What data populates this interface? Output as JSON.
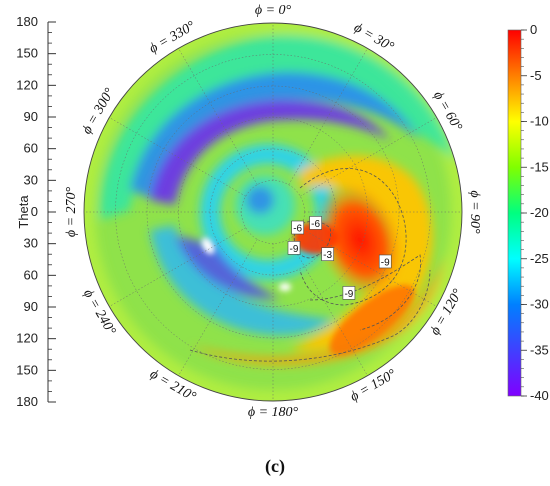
{
  "chart_data": {
    "type": "heatmap",
    "projection": "polar",
    "ylabel": "Theta",
    "theta_ticks": [
      "180",
      "150",
      "120",
      "90",
      "60",
      "30",
      "0",
      "30",
      "60",
      "90",
      "120",
      "150",
      "180"
    ],
    "theta_range": [
      0,
      180
    ],
    "phi_labels": [
      {
        "phi": 0,
        "text": "ϕ = 0°"
      },
      {
        "phi": 30,
        "text": "ϕ = 30°"
      },
      {
        "phi": 60,
        "text": "ϕ = 60°"
      },
      {
        "phi": 90,
        "text": "ϕ = 90°"
      },
      {
        "phi": 120,
        "text": "ϕ = 120°"
      },
      {
        "phi": 150,
        "text": "ϕ = 150°"
      },
      {
        "phi": 180,
        "text": "ϕ = 180°"
      },
      {
        "phi": 210,
        "text": "ϕ = 210°"
      },
      {
        "phi": 240,
        "text": "ϕ = 240°"
      },
      {
        "phi": 270,
        "text": "ϕ = 270°"
      },
      {
        "phi": 300,
        "text": "ϕ = 300°"
      },
      {
        "phi": 330,
        "text": "ϕ = 330°"
      }
    ],
    "colorbar": {
      "min": -40,
      "max": 0,
      "ticks": [
        "0",
        "-5",
        "-10",
        "-15",
        "-20",
        "-25",
        "-30",
        "-35",
        "-40"
      ],
      "colors": [
        "#ff0000",
        "#ff7f00",
        "#ffff00",
        "#80ff00",
        "#00ff80",
        "#00ffff",
        "#0080ff",
        "#4040ff",
        "#8000ff"
      ]
    },
    "contour_labels": [
      {
        "phi": 105,
        "theta": 42,
        "value": "-6"
      },
      {
        "phi": 123,
        "theta": 28,
        "value": "-6"
      },
      {
        "phi": 150,
        "theta": 40,
        "value": "-9"
      },
      {
        "phi": 128,
        "theta": 66,
        "value": "-3"
      },
      {
        "phi": 114,
        "theta": 117,
        "value": "-9"
      },
      {
        "phi": 137,
        "theta": 106,
        "value": "-9"
      }
    ],
    "caption": "(c)"
  }
}
